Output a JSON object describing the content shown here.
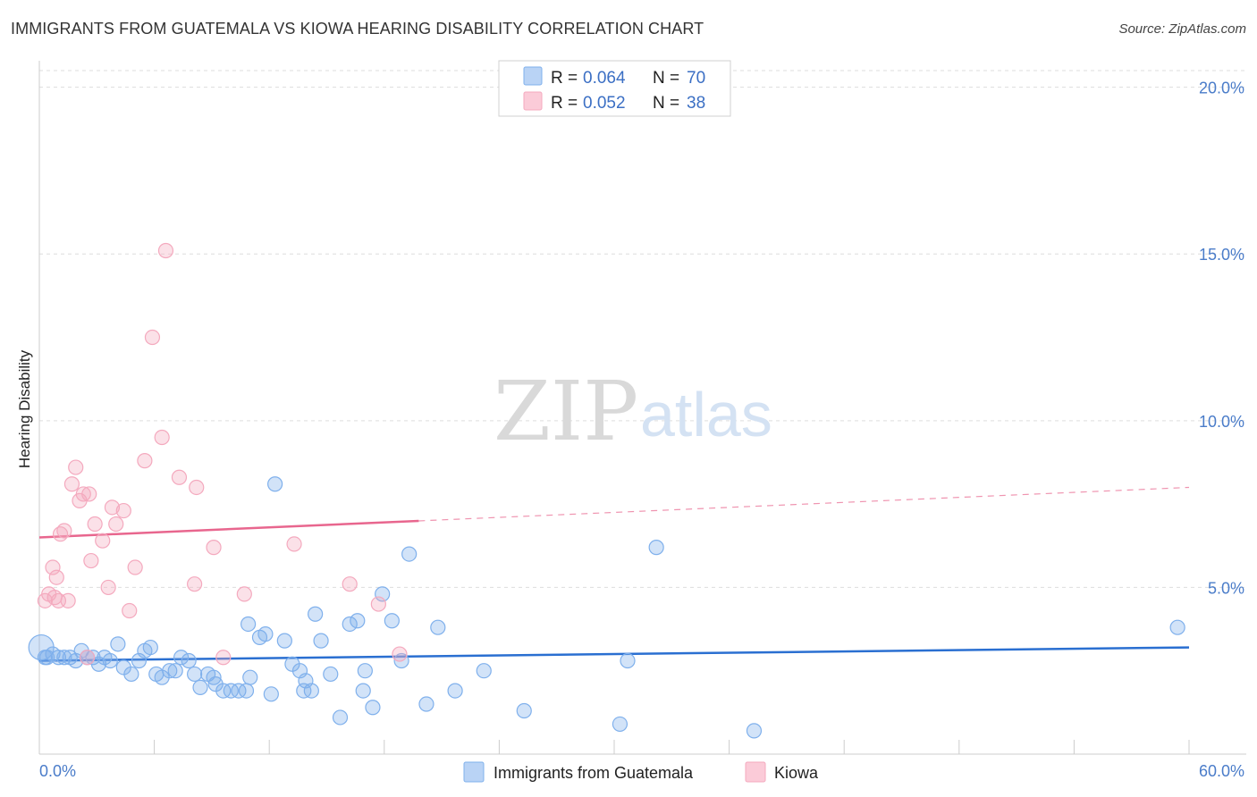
{
  "chart_data": {
    "type": "scatter",
    "title": "IMMIGRANTS FROM GUATEMALA VS KIOWA HEARING DISABILITY CORRELATION CHART",
    "source": "Source: ZipAtlas.com",
    "xlabel": "",
    "ylabel": "Hearing Disability",
    "xlim": [
      0,
      60
    ],
    "ylim": [
      0,
      20.5
    ],
    "x_tick_labels": [
      "0.0%",
      "60.0%"
    ],
    "y_ticks": [
      5,
      10,
      15,
      20
    ],
    "y_tick_labels": [
      "5.0%",
      "10.0%",
      "15.0%",
      "20.0%"
    ],
    "grid": true,
    "watermark": {
      "zip": "ZIP",
      "atlas": "atlas"
    },
    "legend": {
      "position": "top-center",
      "entries": [
        {
          "r_label": "R =",
          "r_value": "0.064",
          "n_label": "N =",
          "n_value": "70"
        },
        {
          "r_label": "R =",
          "r_value": "0.052",
          "n_label": "N =",
          "n_value": "38"
        }
      ]
    },
    "series": [
      {
        "name": "Immigrants from Guatemala",
        "color": "#7fb0ec",
        "line_color": "#2a6fd1",
        "trend": {
          "x0": 0,
          "y0": 2.8,
          "x1": 60,
          "y1": 3.2,
          "dashed_from": null
        },
        "points": [
          [
            0.1,
            3.2
          ],
          [
            0.4,
            2.9
          ],
          [
            0.7,
            3.0
          ],
          [
            1.0,
            2.9
          ],
          [
            1.3,
            2.9
          ],
          [
            1.6,
            2.9
          ],
          [
            1.9,
            2.8
          ],
          [
            2.2,
            3.1
          ],
          [
            2.5,
            2.9
          ],
          [
            2.8,
            2.9
          ],
          [
            3.1,
            2.7
          ],
          [
            3.4,
            2.9
          ],
          [
            3.7,
            2.8
          ],
          [
            4.1,
            3.3
          ],
          [
            4.4,
            2.6
          ],
          [
            4.8,
            2.4
          ],
          [
            5.2,
            2.8
          ],
          [
            5.5,
            3.1
          ],
          [
            5.8,
            3.2
          ],
          [
            6.1,
            2.4
          ],
          [
            6.4,
            2.3
          ],
          [
            6.8,
            2.5
          ],
          [
            7.1,
            2.5
          ],
          [
            7.4,
            2.9
          ],
          [
            7.8,
            2.8
          ],
          [
            8.1,
            2.4
          ],
          [
            8.4,
            2.0
          ],
          [
            8.8,
            2.4
          ],
          [
            9.2,
            2.1
          ],
          [
            9.6,
            1.9
          ],
          [
            10.0,
            1.9
          ],
          [
            10.4,
            1.9
          ],
          [
            10.8,
            1.9
          ],
          [
            10.9,
            3.9
          ],
          [
            11.5,
            3.5
          ],
          [
            11.8,
            3.6
          ],
          [
            12.3,
            8.1
          ],
          [
            12.8,
            3.4
          ],
          [
            13.2,
            2.7
          ],
          [
            13.6,
            2.5
          ],
          [
            13.9,
            2.2
          ],
          [
            14.2,
            1.9
          ],
          [
            14.4,
            4.2
          ],
          [
            15.2,
            2.4
          ],
          [
            15.7,
            1.1
          ],
          [
            16.2,
            3.9
          ],
          [
            16.6,
            4.0
          ],
          [
            17.0,
            2.5
          ],
          [
            17.4,
            1.4
          ],
          [
            17.9,
            4.8
          ],
          [
            18.4,
            4.0
          ],
          [
            18.9,
            2.8
          ],
          [
            19.3,
            6.0
          ],
          [
            20.2,
            1.5
          ],
          [
            20.8,
            3.8
          ],
          [
            21.7,
            1.9
          ],
          [
            23.2,
            2.5
          ],
          [
            25.3,
            1.3
          ],
          [
            30.3,
            0.9
          ],
          [
            30.7,
            2.8
          ],
          [
            32.2,
            6.2
          ],
          [
            37.3,
            0.7
          ],
          [
            59.4,
            3.8
          ],
          [
            0.3,
            2.9
          ],
          [
            14.7,
            3.4
          ],
          [
            13.8,
            1.9
          ],
          [
            16.9,
            1.9
          ],
          [
            12.1,
            1.8
          ],
          [
            9.1,
            2.3
          ],
          [
            11.0,
            2.3
          ]
        ]
      },
      {
        "name": "Kiowa",
        "color": "#f4a9be",
        "line_color": "#e8668e",
        "trend": {
          "x0": 0,
          "y0": 6.5,
          "x1": 60,
          "y1": 8.0,
          "dashed_from": 19.8
        },
        "points": [
          [
            0.3,
            4.6
          ],
          [
            0.5,
            4.8
          ],
          [
            0.7,
            5.6
          ],
          [
            0.9,
            5.3
          ],
          [
            1.1,
            6.6
          ],
          [
            1.3,
            6.7
          ],
          [
            1.5,
            4.6
          ],
          [
            1.7,
            8.1
          ],
          [
            1.9,
            8.6
          ],
          [
            2.1,
            7.6
          ],
          [
            2.3,
            7.8
          ],
          [
            2.5,
            2.9
          ],
          [
            2.7,
            5.8
          ],
          [
            2.9,
            6.9
          ],
          [
            3.3,
            6.4
          ],
          [
            3.6,
            5.0
          ],
          [
            3.8,
            7.4
          ],
          [
            4.0,
            6.9
          ],
          [
            4.4,
            7.3
          ],
          [
            4.7,
            4.3
          ],
          [
            5.0,
            5.6
          ],
          [
            5.5,
            8.8
          ],
          [
            5.9,
            12.5
          ],
          [
            6.4,
            9.5
          ],
          [
            6.6,
            15.1
          ],
          [
            7.3,
            8.3
          ],
          [
            8.1,
            5.1
          ],
          [
            8.2,
            8.0
          ],
          [
            9.1,
            6.2
          ],
          [
            9.6,
            2.9
          ],
          [
            10.7,
            4.8
          ],
          [
            13.3,
            6.3
          ],
          [
            16.2,
            5.1
          ],
          [
            17.7,
            4.5
          ],
          [
            18.8,
            3.0
          ],
          [
            1.0,
            4.6
          ],
          [
            0.8,
            4.7
          ],
          [
            2.6,
            7.8
          ]
        ]
      }
    ]
  }
}
